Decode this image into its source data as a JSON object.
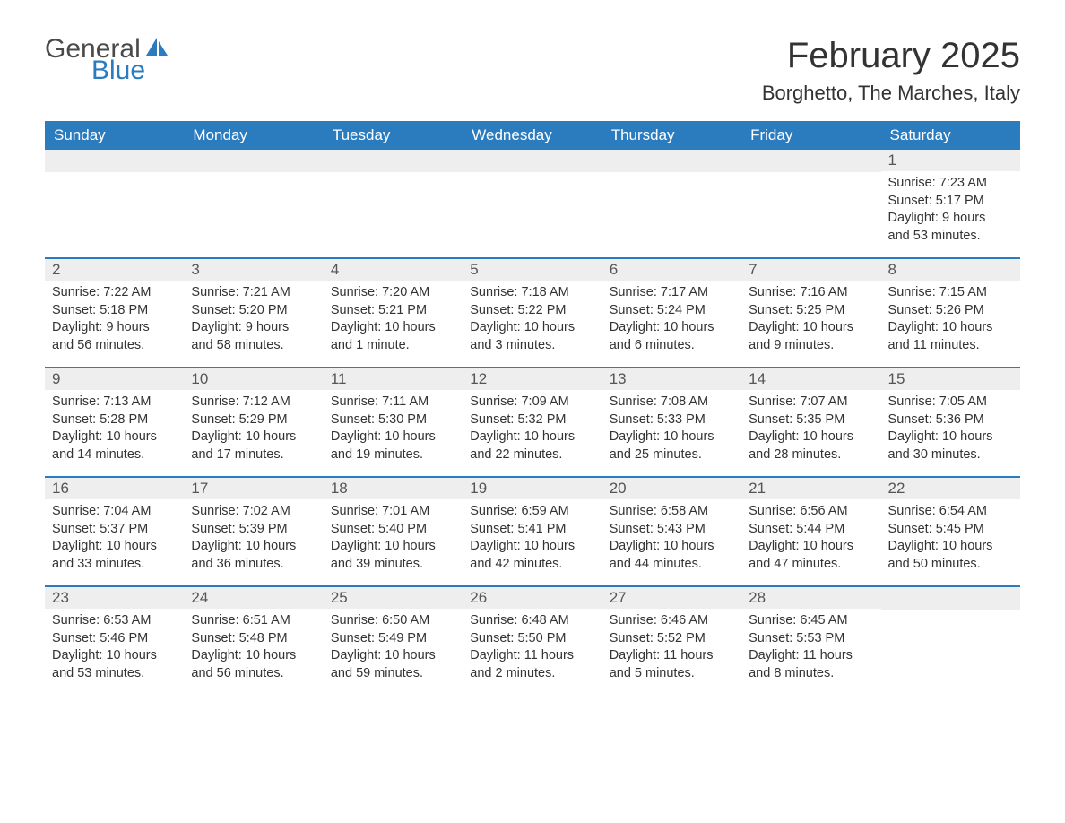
{
  "logo": {
    "general": "General",
    "blue": "Blue"
  },
  "title": "February 2025",
  "location": "Borghetto, The Marches, Italy",
  "colors": {
    "header_bg": "#2b7bbf",
    "header_text": "#ffffff",
    "daynum_bg": "#eeeeee",
    "border": "#2b7bbf",
    "text": "#333333",
    "logo_gray": "#4a4a4a",
    "logo_blue": "#2b7bbf",
    "background": "#ffffff"
  },
  "dayHeaders": [
    "Sunday",
    "Monday",
    "Tuesday",
    "Wednesday",
    "Thursday",
    "Friday",
    "Saturday"
  ],
  "weeks": [
    [
      null,
      null,
      null,
      null,
      null,
      null,
      {
        "n": "1",
        "sunrise": "Sunrise: 7:23 AM",
        "sunset": "Sunset: 5:17 PM",
        "dl1": "Daylight: 9 hours",
        "dl2": "and 53 minutes."
      }
    ],
    [
      {
        "n": "2",
        "sunrise": "Sunrise: 7:22 AM",
        "sunset": "Sunset: 5:18 PM",
        "dl1": "Daylight: 9 hours",
        "dl2": "and 56 minutes."
      },
      {
        "n": "3",
        "sunrise": "Sunrise: 7:21 AM",
        "sunset": "Sunset: 5:20 PM",
        "dl1": "Daylight: 9 hours",
        "dl2": "and 58 minutes."
      },
      {
        "n": "4",
        "sunrise": "Sunrise: 7:20 AM",
        "sunset": "Sunset: 5:21 PM",
        "dl1": "Daylight: 10 hours",
        "dl2": "and 1 minute."
      },
      {
        "n": "5",
        "sunrise": "Sunrise: 7:18 AM",
        "sunset": "Sunset: 5:22 PM",
        "dl1": "Daylight: 10 hours",
        "dl2": "and 3 minutes."
      },
      {
        "n": "6",
        "sunrise": "Sunrise: 7:17 AM",
        "sunset": "Sunset: 5:24 PM",
        "dl1": "Daylight: 10 hours",
        "dl2": "and 6 minutes."
      },
      {
        "n": "7",
        "sunrise": "Sunrise: 7:16 AM",
        "sunset": "Sunset: 5:25 PM",
        "dl1": "Daylight: 10 hours",
        "dl2": "and 9 minutes."
      },
      {
        "n": "8",
        "sunrise": "Sunrise: 7:15 AM",
        "sunset": "Sunset: 5:26 PM",
        "dl1": "Daylight: 10 hours",
        "dl2": "and 11 minutes."
      }
    ],
    [
      {
        "n": "9",
        "sunrise": "Sunrise: 7:13 AM",
        "sunset": "Sunset: 5:28 PM",
        "dl1": "Daylight: 10 hours",
        "dl2": "and 14 minutes."
      },
      {
        "n": "10",
        "sunrise": "Sunrise: 7:12 AM",
        "sunset": "Sunset: 5:29 PM",
        "dl1": "Daylight: 10 hours",
        "dl2": "and 17 minutes."
      },
      {
        "n": "11",
        "sunrise": "Sunrise: 7:11 AM",
        "sunset": "Sunset: 5:30 PM",
        "dl1": "Daylight: 10 hours",
        "dl2": "and 19 minutes."
      },
      {
        "n": "12",
        "sunrise": "Sunrise: 7:09 AM",
        "sunset": "Sunset: 5:32 PM",
        "dl1": "Daylight: 10 hours",
        "dl2": "and 22 minutes."
      },
      {
        "n": "13",
        "sunrise": "Sunrise: 7:08 AM",
        "sunset": "Sunset: 5:33 PM",
        "dl1": "Daylight: 10 hours",
        "dl2": "and 25 minutes."
      },
      {
        "n": "14",
        "sunrise": "Sunrise: 7:07 AM",
        "sunset": "Sunset: 5:35 PM",
        "dl1": "Daylight: 10 hours",
        "dl2": "and 28 minutes."
      },
      {
        "n": "15",
        "sunrise": "Sunrise: 7:05 AM",
        "sunset": "Sunset: 5:36 PM",
        "dl1": "Daylight: 10 hours",
        "dl2": "and 30 minutes."
      }
    ],
    [
      {
        "n": "16",
        "sunrise": "Sunrise: 7:04 AM",
        "sunset": "Sunset: 5:37 PM",
        "dl1": "Daylight: 10 hours",
        "dl2": "and 33 minutes."
      },
      {
        "n": "17",
        "sunrise": "Sunrise: 7:02 AM",
        "sunset": "Sunset: 5:39 PM",
        "dl1": "Daylight: 10 hours",
        "dl2": "and 36 minutes."
      },
      {
        "n": "18",
        "sunrise": "Sunrise: 7:01 AM",
        "sunset": "Sunset: 5:40 PM",
        "dl1": "Daylight: 10 hours",
        "dl2": "and 39 minutes."
      },
      {
        "n": "19",
        "sunrise": "Sunrise: 6:59 AM",
        "sunset": "Sunset: 5:41 PM",
        "dl1": "Daylight: 10 hours",
        "dl2": "and 42 minutes."
      },
      {
        "n": "20",
        "sunrise": "Sunrise: 6:58 AM",
        "sunset": "Sunset: 5:43 PM",
        "dl1": "Daylight: 10 hours",
        "dl2": "and 44 minutes."
      },
      {
        "n": "21",
        "sunrise": "Sunrise: 6:56 AM",
        "sunset": "Sunset: 5:44 PM",
        "dl1": "Daylight: 10 hours",
        "dl2": "and 47 minutes."
      },
      {
        "n": "22",
        "sunrise": "Sunrise: 6:54 AM",
        "sunset": "Sunset: 5:45 PM",
        "dl1": "Daylight: 10 hours",
        "dl2": "and 50 minutes."
      }
    ],
    [
      {
        "n": "23",
        "sunrise": "Sunrise: 6:53 AM",
        "sunset": "Sunset: 5:46 PM",
        "dl1": "Daylight: 10 hours",
        "dl2": "and 53 minutes."
      },
      {
        "n": "24",
        "sunrise": "Sunrise: 6:51 AM",
        "sunset": "Sunset: 5:48 PM",
        "dl1": "Daylight: 10 hours",
        "dl2": "and 56 minutes."
      },
      {
        "n": "25",
        "sunrise": "Sunrise: 6:50 AM",
        "sunset": "Sunset: 5:49 PM",
        "dl1": "Daylight: 10 hours",
        "dl2": "and 59 minutes."
      },
      {
        "n": "26",
        "sunrise": "Sunrise: 6:48 AM",
        "sunset": "Sunset: 5:50 PM",
        "dl1": "Daylight: 11 hours",
        "dl2": "and 2 minutes."
      },
      {
        "n": "27",
        "sunrise": "Sunrise: 6:46 AM",
        "sunset": "Sunset: 5:52 PM",
        "dl1": "Daylight: 11 hours",
        "dl2": "and 5 minutes."
      },
      {
        "n": "28",
        "sunrise": "Sunrise: 6:45 AM",
        "sunset": "Sunset: 5:53 PM",
        "dl1": "Daylight: 11 hours",
        "dl2": "and 8 minutes."
      },
      null
    ]
  ]
}
